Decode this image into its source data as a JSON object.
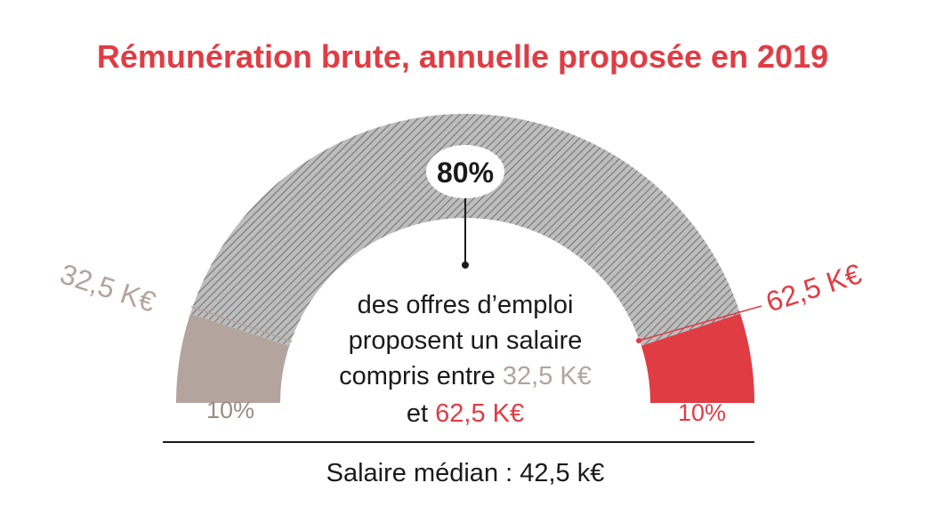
{
  "chart_data": {
    "type": "gauge",
    "title": "Rémunération brute, annuelle proposée en 2019",
    "segments": [
      {
        "name": "",
        "value": 10,
        "label": "10%",
        "color": "#b3a49e"
      },
      {
        "name": "",
        "value": 80,
        "label": "80%",
        "color": "#a9a9a9",
        "pattern": "diagonal-hatch"
      },
      {
        "name": "",
        "value": 10,
        "label": "10%",
        "color": "#e03c44"
      }
    ],
    "thresholds": [
      {
        "label": "32,5 K€",
        "color": "#b3a49e"
      },
      {
        "label": "62,5 K€",
        "color": "#e03c44"
      }
    ],
    "annotation": {
      "lines": [
        "des offres d’emploi",
        "proposent un salaire",
        "compris entre "
      ],
      "low": "32,5 K€",
      "and": "et ",
      "high": "62,5 K€"
    },
    "footer": "Salaire médian : 42,5 k€"
  },
  "colors": {
    "title": "#e03c44",
    "low": "#b3a49e",
    "mid": "#a9a9a9",
    "high": "#e03c44",
    "text": "#1a1a1a"
  }
}
